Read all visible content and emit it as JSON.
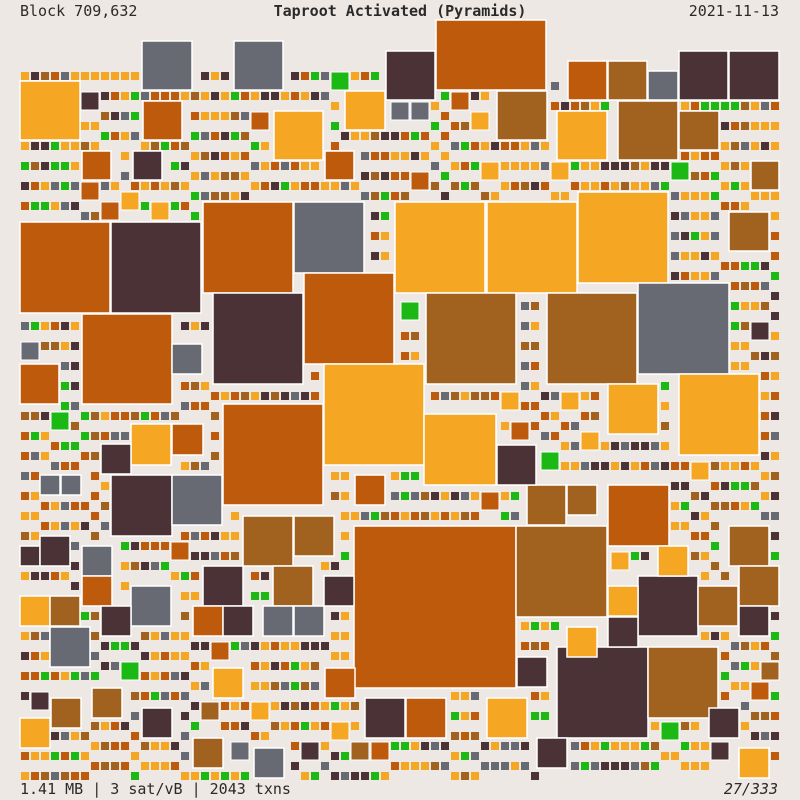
{
  "header": {
    "block_label": "Block 709,632",
    "title": "Taproot Activated (Pyramids)",
    "date": "2021-11-13"
  },
  "footer": {
    "stats": "1.41 MB | 3 sat/vB | 2043 txns",
    "page_indicator": "27/333"
  },
  "palette": {
    "background": "#eee8e4",
    "border": "#ffffff",
    "amber": "#f5a623",
    "burnt_orange": "#be5a0c",
    "ochre_brown": "#a0621e",
    "dark_brown": "#4a3236",
    "slate_gray": "#676a73",
    "green": "#1cb814"
  }
}
